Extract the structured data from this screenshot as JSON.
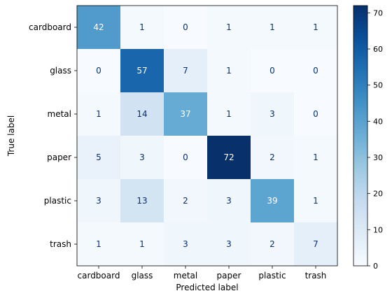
{
  "chart_data": {
    "type": "heatmap",
    "xlabel": "Predicted label",
    "ylabel": "True label",
    "x_categories": [
      "cardboard",
      "glass",
      "metal",
      "paper",
      "plastic",
      "trash"
    ],
    "y_categories": [
      "cardboard",
      "glass",
      "metal",
      "paper",
      "plastic",
      "trash"
    ],
    "values": [
      [
        42,
        1,
        0,
        1,
        1,
        1
      ],
      [
        0,
        57,
        7,
        1,
        0,
        0
      ],
      [
        1,
        14,
        37,
        1,
        3,
        0
      ],
      [
        5,
        3,
        0,
        72,
        2,
        1
      ],
      [
        3,
        13,
        2,
        3,
        39,
        1
      ],
      [
        1,
        1,
        3,
        3,
        2,
        7
      ]
    ],
    "colormap": "Blues",
    "vmin": 0,
    "vmax": 72,
    "colorbar_ticks": [
      0,
      10,
      20,
      30,
      40,
      50,
      60,
      70
    ],
    "grid": false
  }
}
